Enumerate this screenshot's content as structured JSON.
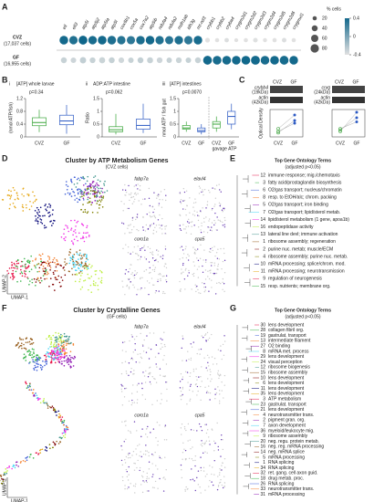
{
  "panel_labels": [
    "A",
    "B",
    "C",
    "D",
    "E",
    "F",
    "G"
  ],
  "dot_plot": {
    "legend_title": "% cells",
    "size_ticks": [
      20,
      40,
      60,
      80
    ],
    "size_max": 80,
    "color_ticks": [
      0.4,
      0,
      -0.4
    ],
    "color_lim": [
      -0.4,
      0.4
    ],
    "genes": [
      "ell",
      "ell3",
      "atp5i",
      "atp5j2",
      "atp5ia",
      "atp5l",
      "cox6b1",
      "cox5a",
      "cox7a2",
      "atp5ib",
      "ndufa4",
      "ndufa2",
      "mdh1ab",
      "idh3g",
      "mt-nd3",
      "crybb1",
      "crybb2",
      "cryba4",
      "crygm2d1",
      "crygm2d2",
      "crygm2d3",
      "crygm2d4",
      "crygm2d5",
      "crygm2d6",
      "crygmxl1"
    ],
    "rows": [
      {
        "name": "CVZ",
        "cells": "(17,037 cells)",
        "pct": [
          85,
          80,
          88,
          82,
          86,
          84,
          80,
          78,
          83,
          85,
          80,
          76,
          82,
          79,
          84,
          25,
          20,
          22,
          18,
          20,
          24,
          19,
          21,
          23,
          20
        ],
        "expr": [
          0.4,
          0.35,
          0.42,
          0.38,
          0.4,
          0.36,
          0.33,
          0.3,
          0.37,
          0.4,
          0.35,
          0.32,
          0.36,
          0.3,
          0.38,
          -0.4,
          -0.4,
          -0.38,
          -0.4,
          -0.4,
          -0.39,
          -0.4,
          -0.4,
          -0.38,
          -0.4
        ]
      },
      {
        "name": "GF",
        "cells": "(16,955 cells)",
        "pct": [
          40,
          35,
          45,
          38,
          42,
          40,
          36,
          34,
          39,
          41,
          37,
          33,
          38,
          35,
          40,
          88,
          85,
          86,
          84,
          87,
          90,
          85,
          86,
          88,
          84
        ],
        "expr": [
          -0.3,
          -0.32,
          -0.28,
          -0.3,
          -0.31,
          -0.29,
          -0.33,
          -0.3,
          -0.28,
          -0.3,
          -0.32,
          -0.3,
          -0.31,
          -0.29,
          -0.3,
          0.4,
          0.38,
          0.39,
          0.4,
          0.41,
          0.4,
          0.38,
          0.4,
          0.39,
          0.4
        ]
      }
    ]
  },
  "atp_plots": [
    {
      "numeral": "i",
      "title": "[ATP] whole larvae",
      "p": "p=0.34",
      "ylabel": "(nmol ATP/fish)",
      "ylim": [
        0,
        1.2
      ],
      "yticks": [
        0,
        0.4,
        0.8,
        1.2
      ],
      "groups": [
        {
          "name": "CVZ",
          "stats": [
            0.15,
            0.35,
            0.45,
            0.6,
            0.85
          ]
        },
        {
          "name": "GF",
          "stats": [
            0.1,
            0.38,
            0.5,
            0.68,
            1.0
          ]
        }
      ]
    },
    {
      "numeral": "ii",
      "title": "ADP:ATP intestine",
      "p": "p=0.062",
      "ylabel": "Ratio",
      "ylim": [
        0,
        1.5
      ],
      "yticks": [
        0,
        0.5,
        1,
        1.5
      ],
      "groups": [
        {
          "name": "CVZ",
          "stats": [
            0.1,
            0.2,
            0.28,
            0.4,
            0.9
          ]
        },
        {
          "name": "GF",
          "stats": [
            0.15,
            0.3,
            0.45,
            0.7,
            1.3
          ]
        }
      ]
    },
    {
      "numeral": "iii",
      "title": "[ATP] intestines",
      "p": "p=0.0070",
      "ylabel": "nmol ATP / fish gut",
      "ylim": [
        0,
        1.5
      ],
      "yticks": [
        0,
        0.5,
        1,
        1.5
      ],
      "groups": [
        {
          "name": "CVZ",
          "stats": [
            0.2,
            0.3,
            0.35,
            0.45,
            0.6
          ]
        },
        {
          "name": "GF",
          "stats": [
            0.1,
            0.2,
            0.25,
            0.35,
            0.5
          ]
        },
        {
          "name": "CVZ",
          "stats": [
            0.2,
            0.35,
            0.5,
            0.6,
            0.8
          ]
        },
        {
          "name": "GF",
          "stats": [
            0.3,
            0.5,
            0.8,
            1.0,
            1.3
          ]
        }
      ]
    }
  ],
  "gavage_label": "gavage ATP",
  "blots": [
    {
      "groups": [
        "CVZ",
        "GF"
      ],
      "target": "crybb4",
      "target_size": "(19kDa)",
      "control": "actin",
      "control_size": "(42kDa)",
      "ylim": [
        0,
        1
      ],
      "cvz": [
        0.2,
        0.3,
        0.15
      ],
      "gf": [
        0.5,
        0.8,
        0.6
      ]
    },
    {
      "groups": [
        "CVZ",
        "GF"
      ],
      "target": "cryg",
      "target_size": "(24kDa)",
      "control": "actin",
      "control_size": "(42kDa)",
      "ylim": [
        0,
        1
      ],
      "cvz": [
        0.25,
        0.2,
        0.3
      ],
      "gf": [
        0.7,
        0.9,
        0.55
      ]
    }
  ],
  "blot_ylabel": "Optical Density",
  "umap_d": {
    "title": "Cluster by ATP Metabolism Genes",
    "subtitle": "(CVZ cells)",
    "x_label": "UMAP-1",
    "y_label": "UMAP-2",
    "features": [
      "fabp7a",
      "elavl4",
      "coro1a",
      "cpa5"
    ]
  },
  "go_e": {
    "title": "Top Gene Ontology Terms",
    "subtitle": "(adjusted p<0.05)",
    "terms": [
      [
        "12",
        "immune response; mig./chemotaxis"
      ],
      [
        "3",
        "fatty acid/prostaglandin biosynthesis"
      ],
      [
        "6",
        "O2/gas transport; nucleus/chromatin"
      ],
      [
        "8",
        "resp. to EtOH/alc; chrom. packing"
      ],
      [
        "5",
        "O2/gas transport; iron binding"
      ],
      [
        "7",
        "O2/gas transport; lipid/sterol metab."
      ],
      [
        "14",
        "lipid/sterol metabolism (1 gene, apoa1b)"
      ],
      [
        "16",
        "endopeptidase activity"
      ],
      [
        "13",
        "lateral line devl; immune activation"
      ],
      [
        "1",
        "ribosome assembly; regeneration"
      ],
      [
        "2",
        "purine nuc. metab; muscle/ECM"
      ],
      [
        "4",
        "ribosome assembly; purine nuc. metab."
      ],
      [
        "10",
        "mRNA processing; splice/chrom. mod."
      ],
      [
        "11",
        "mRNA processing; neurotransmission"
      ],
      [
        "9",
        "regulation of neurogenesis"
      ],
      [
        "15",
        "resp. nutrients; membrane org."
      ]
    ]
  },
  "umap_f": {
    "title": "Cluster by Crystalline Genes",
    "subtitle": "(GF cells)",
    "x_label": "UMAP-1",
    "y_label": "UMAP-2",
    "features": [
      "fabp7a",
      "elavl4",
      "coro1a",
      "cpa5"
    ]
  },
  "go_g": {
    "title": "Top Gene Ontology Terms",
    "subtitle": "(adjusted p<0.05)",
    "terms": [
      [
        "30",
        "lens development"
      ],
      [
        "28",
        "collagen fibril org."
      ],
      [
        "19",
        "gastrulat. transport"
      ],
      [
        "13",
        "intermediate filament"
      ],
      [
        "27",
        "O2 binding"
      ],
      [
        "8",
        "mRNA met. process"
      ],
      [
        "29",
        "lens development"
      ],
      [
        "24",
        "visual perception"
      ],
      [
        "12",
        "ribosome biogenesis"
      ],
      [
        "15",
        "ribosome assembly"
      ],
      [
        "10",
        "lens development"
      ],
      [
        "6",
        "lens development"
      ],
      [
        "11",
        "lens development"
      ],
      [
        "35",
        "lens development"
      ],
      [
        "3",
        "ATP metabolism"
      ],
      [
        "23",
        "gastrulat. transport"
      ],
      [
        "21",
        "lens development"
      ],
      [
        "4",
        "neurotransmitter trans."
      ],
      [
        "2",
        "pigment gran. org."
      ],
      [
        "7",
        "axon development"
      ],
      [
        "36",
        "myeloid/leukocyte mig."
      ],
      [
        "9",
        "ribosome assembly"
      ],
      [
        "20",
        "neg. regu. protein metab."
      ],
      [
        "16",
        "neg. reg. mRNA processing"
      ],
      [
        "14",
        "neg. mRNA splice"
      ],
      [
        "5",
        "mRNA processing"
      ],
      [
        "1",
        "RNA splicing"
      ],
      [
        "34",
        "RNA splicing"
      ],
      [
        "32",
        "ret. gang. cell axon guid."
      ],
      [
        "18",
        "drug metab. proc."
      ],
      [
        "26",
        "RNA splicing"
      ],
      [
        "33",
        "neurotransmitter trans."
      ],
      [
        "31",
        "mRNA processing"
      ]
    ]
  }
}
